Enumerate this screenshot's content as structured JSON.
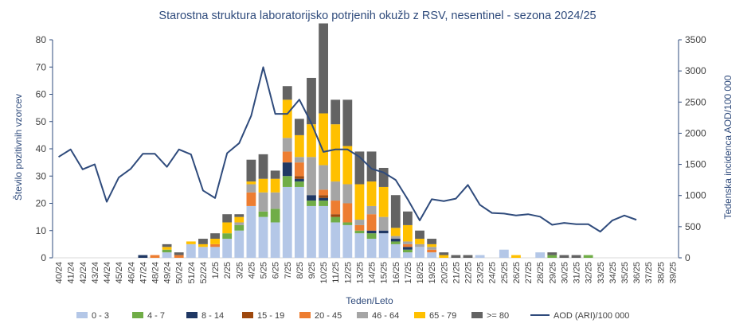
{
  "chart_data": {
    "type": "bar",
    "stacked": true,
    "title": "Starostna struktura  laboratorijsko potrjenih  okužb z RSV, nesentinel - sezona 2024/25",
    "xlabel": "Teden/Leto",
    "ylabel": "Število pozitivnih vzorcev",
    "y2label": "Tedenska  incidenca AOD/100 000",
    "ylim": [
      0,
      80
    ],
    "y2lim": [
      0,
      3500
    ],
    "yticks": [
      "0",
      "10",
      "20",
      "30",
      "40",
      "50",
      "60",
      "70",
      "80"
    ],
    "y2ticks": [
      "0",
      "500",
      "1000",
      "1500",
      "2000",
      "2500",
      "3000",
      "3500"
    ],
    "grid": false,
    "legend": "bottom",
    "categories": [
      "40/24",
      "41/24",
      "42/24",
      "43/24",
      "44/24",
      "45/24",
      "46/24",
      "47/24",
      "48/24",
      "49/24",
      "50/24",
      "51/24",
      "52/24",
      "1/25",
      "2/25",
      "3/25",
      "4/25",
      "5/25",
      "6/25",
      "7/25",
      "8/25",
      "9/25",
      "10/25",
      "11/25",
      "12/25",
      "13/25",
      "14/25",
      "15/25",
      "16/25",
      "17/25",
      "18/25",
      "19/25",
      "20/25",
      "21/25",
      "22/25",
      "23/25",
      "24/25",
      "25/25",
      "26/25",
      "27/25",
      "28/25",
      "29/25",
      "30/25",
      "31/25",
      "32/25",
      "33/25",
      "34/25",
      "35/25",
      "36/25",
      "37/25",
      "38/25",
      "39/25"
    ],
    "series": [
      {
        "name": "0 - 3",
        "color": "#b4c7e7",
        "values": [
          0,
          0,
          0,
          0,
          0,
          0,
          0,
          0,
          0,
          2,
          0,
          5,
          4,
          4,
          7,
          10,
          19,
          15,
          13,
          26,
          26,
          19,
          19,
          13,
          12,
          9,
          7,
          9,
          5,
          2,
          4,
          2,
          0,
          0,
          0,
          1,
          0,
          3,
          0,
          0,
          2,
          0,
          0,
          0,
          0,
          0,
          0,
          0,
          0,
          0,
          0,
          0
        ]
      },
      {
        "name": "4 - 7",
        "color": "#70ad47",
        "values": [
          0,
          0,
          0,
          0,
          0,
          0,
          0,
          0,
          0,
          1,
          0,
          0,
          0,
          0,
          2,
          2,
          0,
          2,
          5,
          4,
          2,
          2,
          2,
          2,
          1,
          1,
          2,
          0,
          1,
          1,
          0,
          0,
          0,
          0,
          0,
          0,
          0,
          0,
          0,
          0,
          0,
          1,
          0,
          0,
          1,
          0,
          0,
          0,
          0,
          0,
          0,
          0
        ]
      },
      {
        "name": "8 - 14",
        "color": "#203864",
        "values": [
          0,
          0,
          0,
          0,
          0,
          0,
          0,
          1,
          0,
          0,
          0,
          0,
          0,
          0,
          0,
          0,
          0,
          0,
          0,
          5,
          1,
          2,
          1,
          0,
          0,
          0,
          1,
          1,
          1,
          1,
          0,
          0,
          0,
          0,
          0,
          0,
          0,
          0,
          0,
          0,
          0,
          0,
          0,
          0,
          0,
          0,
          0,
          0,
          0,
          0,
          0,
          0
        ]
      },
      {
        "name": "15 - 19",
        "color": "#9e480e",
        "values": [
          0,
          0,
          0,
          0,
          0,
          0,
          0,
          0,
          0,
          0,
          0,
          0,
          0,
          0,
          0,
          0,
          0,
          0,
          0,
          0,
          1,
          0,
          1,
          1,
          0,
          0,
          0,
          0,
          0,
          0,
          0,
          0,
          0,
          0,
          0,
          0,
          0,
          0,
          0,
          0,
          0,
          0,
          0,
          0,
          0,
          0,
          0,
          0,
          0,
          0,
          0,
          0
        ]
      },
      {
        "name": "20 - 45",
        "color": "#ed7d31",
        "values": [
          0,
          0,
          0,
          0,
          0,
          0,
          0,
          0,
          1,
          0,
          1,
          0,
          0,
          1,
          0,
          0,
          5,
          0,
          0,
          4,
          5,
          0,
          2,
          5,
          7,
          2,
          6,
          0,
          0,
          1,
          0,
          1,
          0,
          0,
          0,
          0,
          0,
          0,
          0,
          0,
          0,
          0,
          0,
          0,
          0,
          0,
          0,
          0,
          0,
          0,
          0,
          0
        ]
      },
      {
        "name": "46 - 64",
        "color": "#a5a5a5",
        "values": [
          0,
          0,
          0,
          0,
          0,
          0,
          0,
          0,
          0,
          0,
          0,
          0,
          0,
          0,
          0,
          1,
          3,
          7,
          6,
          5,
          2,
          14,
          9,
          7,
          7,
          2,
          3,
          5,
          1,
          1,
          1,
          1,
          0,
          0,
          0,
          0,
          0,
          0,
          0,
          0,
          0,
          0,
          0,
          0,
          0,
          0,
          0,
          0,
          0,
          0,
          0,
          0
        ]
      },
      {
        "name": "65 - 79",
        "color": "#ffc000",
        "values": [
          0,
          0,
          0,
          0,
          0,
          0,
          0,
          0,
          0,
          1,
          0,
          1,
          1,
          2,
          4,
          2,
          1,
          5,
          5,
          14,
          8,
          12,
          19,
          21,
          14,
          13,
          9,
          11,
          3,
          6,
          2,
          1,
          1,
          0,
          0,
          0,
          0,
          0,
          1,
          0,
          0,
          0,
          0,
          0,
          0,
          0,
          0,
          0,
          0,
          0,
          0,
          0
        ]
      },
      {
        "name": ">= 80",
        "color": "#636363",
        "values": [
          0,
          0,
          0,
          0,
          0,
          0,
          0,
          0,
          0,
          1,
          1,
          0,
          2,
          2,
          3,
          1,
          8,
          9,
          3,
          5,
          6,
          17,
          33,
          9,
          17,
          12,
          11,
          7,
          12,
          5,
          3,
          2,
          1,
          1,
          1,
          0,
          0,
          0,
          0,
          0,
          0,
          1,
          1,
          1,
          0,
          0,
          0,
          0,
          0,
          0,
          0,
          0
        ]
      }
    ],
    "line_series": {
      "name": "AOD (ARI)/100 000",
      "color": "#2f4b7c",
      "axis": "right",
      "values": [
        1620,
        1740,
        1420,
        1500,
        900,
        1290,
        1430,
        1670,
        1670,
        1460,
        1740,
        1660,
        1080,
        960,
        1680,
        1840,
        2280,
        3060,
        2310,
        2310,
        2540,
        2160,
        1700,
        1740,
        1740,
        1620,
        1430,
        1370,
        1250,
        940,
        600,
        940,
        910,
        950,
        1170,
        850,
        720,
        710,
        680,
        700,
        660,
        530,
        560,
        540,
        540,
        420,
        600,
        680,
        610,
        null,
        null,
        null
      ]
    }
  }
}
